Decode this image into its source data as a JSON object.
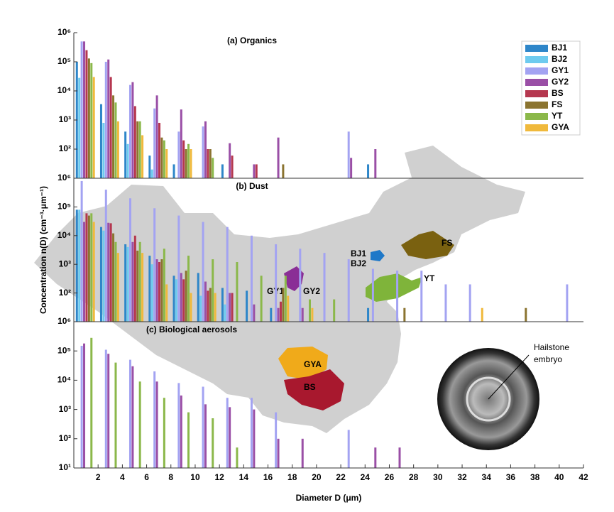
{
  "chart_data": [
    {
      "type": "bar",
      "title": "(a) Organics",
      "log_scale": true,
      "ylim": [
        10,
        1000000
      ],
      "yticks": [
        {
          "value": 100,
          "label": "10²"
        },
        {
          "value": 1000,
          "label": "10³"
        },
        {
          "value": 10000,
          "label": "10⁴"
        },
        {
          "value": 100000,
          "label": "10⁵"
        },
        {
          "value": 1000000,
          "label": "10⁶"
        }
      ],
      "legend": "upper right",
      "series": [
        {
          "name": "BJ1",
          "color": "#2e86c9",
          "x": [
            0.25,
            2.25,
            4.25,
            6.25,
            8.25,
            12.25,
            24.25
          ],
          "values": [
            100000,
            3500,
            400,
            60,
            30,
            30,
            30
          ]
        },
        {
          "name": "BJ2",
          "color": "#6ecbef",
          "x": [
            0.45,
            2.45,
            4.45,
            6.45
          ],
          "values": [
            28000,
            800,
            150,
            20
          ]
        },
        {
          "name": "GY1",
          "color": "#a3a3f2",
          "x": [
            0.65,
            2.65,
            4.65,
            6.65,
            8.65,
            10.65,
            22.65
          ],
          "values": [
            500000,
            100000,
            16000,
            2500,
            400,
            600,
            400
          ]
        },
        {
          "name": "GY2",
          "color": "#9a4fa6",
          "x": [
            0.85,
            2.85,
            4.85,
            6.85,
            8.85,
            10.85,
            12.85,
            14.85,
            16.85,
            22.85,
            24.85
          ],
          "values": [
            500000,
            120000,
            20000,
            7000,
            2300,
            900,
            160,
            30,
            250,
            50,
            100
          ]
        },
        {
          "name": "BS",
          "color": "#b5374f",
          "x": [
            1.05,
            3.05,
            5.05,
            7.05,
            9.05,
            11.05,
            13.05,
            15.05
          ],
          "values": [
            250000,
            30000,
            3000,
            800,
            200,
            100,
            60,
            30
          ]
        },
        {
          "name": "FS",
          "color": "#8b7430",
          "x": [
            1.25,
            3.25,
            5.25,
            7.25,
            9.25,
            11.25,
            17.25
          ],
          "values": [
            130000,
            7000,
            900,
            250,
            100,
            100,
            30
          ]
        },
        {
          "name": "YT",
          "color": "#8bb84a",
          "x": [
            1.45,
            3.45,
            5.45,
            7.45,
            9.45,
            11.45
          ],
          "values": [
            90000,
            4000,
            900,
            200,
            150,
            50
          ]
        },
        {
          "name": "GYA",
          "color": "#f0b93c",
          "x": [
            1.65,
            3.65,
            5.65,
            7.65,
            9.65
          ],
          "values": [
            30000,
            900,
            300,
            100,
            100
          ]
        }
      ]
    },
    {
      "type": "bar",
      "title": "(b) Dust",
      "log_scale": true,
      "ylim": [
        10,
        1000000
      ],
      "y_label": "Concentration n(D) (cm⁻³·μm⁻¹)",
      "yticks": [
        {
          "value": 100,
          "label": "10²"
        },
        {
          "value": 1000,
          "label": "10³"
        },
        {
          "value": 10000,
          "label": "10⁴"
        },
        {
          "value": 100000,
          "label": "10⁵"
        },
        {
          "value": 1000000,
          "label": "10⁶"
        }
      ],
      "series": [
        {
          "name": "BJ1",
          "color": "#2e86c9",
          "x": [
            0.25,
            2.25,
            4.25,
            6.25,
            8.25,
            10.25,
            12.25,
            14.25,
            16.25,
            24.25
          ],
          "values": [
            80000,
            20000,
            5000,
            2000,
            400,
            500,
            150,
            120,
            30,
            30
          ]
        },
        {
          "name": "BJ2",
          "color": "#6ecbef",
          "x": [
            0.45,
            2.45,
            4.45,
            6.45,
            8.45,
            10.45,
            12.45
          ],
          "values": [
            80000,
            15000,
            4000,
            1000,
            300,
            80,
            40
          ]
        },
        {
          "name": "GY1",
          "color": "#a3a3f2",
          "x": [
            0.65,
            2.65,
            4.65,
            6.65,
            8.65,
            10.65,
            12.65,
            14.65,
            16.65,
            18.65,
            20.65,
            22.65,
            24.65,
            26.65,
            28.65,
            30.65,
            32.65,
            40.65
          ],
          "values": [
            800000,
            400000,
            200000,
            90000,
            50000,
            30000,
            20000,
            10000,
            5000,
            3500,
            2500,
            1500,
            700,
            600,
            600,
            200,
            200,
            200
          ]
        },
        {
          "name": "GY2",
          "color": "#9a4fa6",
          "x": [
            0.85,
            2.85,
            4.85,
            6.85,
            8.85,
            10.85,
            12.85,
            14.85,
            16.85,
            18.85
          ],
          "values": [
            30000,
            28000,
            6000,
            1500,
            500,
            250,
            100,
            40,
            30,
            30
          ]
        },
        {
          "name": "BS",
          "color": "#b5374f",
          "x": [
            1.05,
            3.05,
            5.05,
            7.05,
            9.05,
            11.05,
            13.05,
            17.05
          ],
          "values": [
            60000,
            27000,
            10000,
            1200,
            300,
            120,
            100,
            50
          ]
        },
        {
          "name": "FS",
          "color": "#8b7430",
          "x": [
            1.25,
            3.25,
            5.25,
            7.25,
            9.25,
            11.25,
            17.25,
            27.25,
            37.25
          ],
          "values": [
            50000,
            12000,
            3000,
            1500,
            600,
            150,
            150,
            30,
            30
          ]
        },
        {
          "name": "YT",
          "color": "#8bb84a",
          "x": [
            1.45,
            3.45,
            5.45,
            7.45,
            9.45,
            11.45,
            13.45,
            15.45,
            17.45,
            19.45,
            21.45
          ],
          "values": [
            60000,
            6000,
            6000,
            3500,
            2000,
            1500,
            1200,
            400,
            400,
            60,
            60
          ]
        },
        {
          "name": "GYA",
          "color": "#f0b93c",
          "x": [
            1.65,
            3.65,
            5.65,
            7.65,
            9.65,
            11.65,
            17.65,
            19.65,
            33.65
          ],
          "values": [
            30000,
            2500,
            2500,
            200,
            100,
            100,
            80,
            30,
            30
          ]
        }
      ]
    },
    {
      "type": "bar",
      "title": "(c) Biological aerosols",
      "log_scale": true,
      "ylim": [
        10,
        1000000
      ],
      "yticks": [
        {
          "value": 10,
          "label": "10¹"
        },
        {
          "value": 100,
          "label": "10²"
        },
        {
          "value": 1000,
          "label": "10³"
        },
        {
          "value": 10000,
          "label": "10⁴"
        },
        {
          "value": 100000,
          "label": "10⁵"
        },
        {
          "value": 1000000,
          "label": "10⁶"
        }
      ],
      "x_label": "Diameter D (μm)",
      "xlim": [
        0,
        42
      ],
      "xticks": [
        2,
        4,
        6,
        8,
        10,
        12,
        14,
        16,
        18,
        20,
        22,
        24,
        26,
        28,
        30,
        32,
        34,
        36,
        38,
        40,
        42
      ],
      "series": [
        {
          "name": "GY1",
          "color": "#a3a3f2",
          "x": [
            0.65,
            2.65,
            4.65,
            6.65,
            8.65,
            10.65,
            12.65,
            14.65,
            16.65,
            22.65
          ],
          "values": [
            150000,
            110000,
            50000,
            20000,
            8000,
            6000,
            2500,
            2500,
            800,
            200
          ]
        },
        {
          "name": "GY2",
          "color": "#9a4fa6",
          "x": [
            0.85,
            2.85,
            4.85,
            6.85,
            8.85,
            10.85,
            12.85,
            14.85,
            16.85,
            18.85,
            24.85,
            26.85
          ],
          "values": [
            180000,
            80000,
            30000,
            9000,
            3000,
            1500,
            1200,
            1000,
            100,
            100,
            50,
            50
          ]
        },
        {
          "name": "YT",
          "color": "#8bb84a",
          "x": [
            1.45,
            3.45,
            5.45,
            7.45,
            9.45,
            11.45,
            13.45
          ],
          "values": [
            280000,
            40000,
            9000,
            2500,
            800,
            500,
            50
          ]
        }
      ]
    }
  ],
  "map": {
    "labels": [
      "BJ1",
      "BJ2",
      "FS",
      "YT",
      "GY1",
      "GY2",
      "GYA",
      "BS"
    ]
  },
  "hailstone": {
    "label_lines": [
      "Hailstone",
      "embryo"
    ]
  }
}
